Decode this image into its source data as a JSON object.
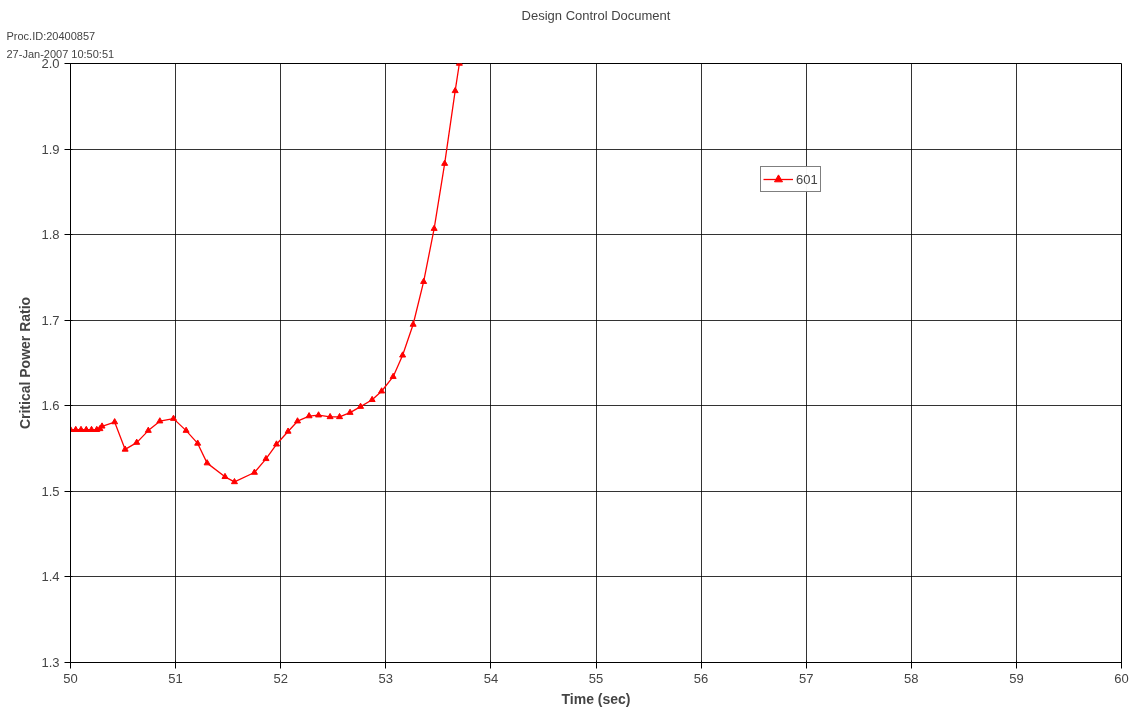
{
  "chart_data": {
    "type": "line",
    "title": "Design Control Document",
    "xlabel": "Time (sec)",
    "ylabel": "Critical Power Ratio",
    "annotations": [
      "Proc.ID:20400857",
      "27-Jan-2007 10:50:51"
    ],
    "x": [
      50.0,
      50.05,
      50.1,
      50.15,
      50.2,
      50.25,
      50.28,
      50.3,
      50.42,
      50.52,
      50.63,
      50.74,
      50.85,
      50.98,
      51.1,
      51.21,
      51.3,
      51.47,
      51.56,
      51.75,
      51.86,
      51.96,
      52.07,
      52.16,
      52.27,
      52.36,
      52.47,
      52.56,
      52.66,
      52.76,
      52.87,
      52.96,
      53.07,
      53.16,
      53.26,
      53.36,
      53.46,
      53.56,
      53.66,
      53.7
    ],
    "series": [
      {
        "name": "601",
        "color": "#ff0000",
        "values": [
          1.572,
          1.572,
          1.572,
          1.572,
          1.572,
          1.572,
          1.573,
          1.576,
          1.581,
          1.549,
          1.557,
          1.571,
          1.582,
          1.585,
          1.571,
          1.556,
          1.533,
          1.517,
          1.511,
          1.522,
          1.538,
          1.555,
          1.57,
          1.582,
          1.588,
          1.589,
          1.587,
          1.587,
          1.592,
          1.599,
          1.607,
          1.617,
          1.634,
          1.659,
          1.695,
          1.745,
          1.807,
          1.883,
          1.968,
          2.0
        ]
      }
    ],
    "xlim": [
      50,
      60
    ],
    "ylim": [
      1.3,
      2.0
    ],
    "xticks": [
      50,
      51,
      52,
      53,
      54,
      55,
      56,
      57,
      58,
      59,
      60
    ],
    "yticks": [
      1.3,
      1.4,
      1.5,
      1.6,
      1.7,
      1.8,
      1.9,
      {
        "value": 2.0,
        "label": "2.0"
      }
    ],
    "grid": true,
    "legend": "top right",
    "marker": "triangle",
    "line_style": "solid"
  }
}
